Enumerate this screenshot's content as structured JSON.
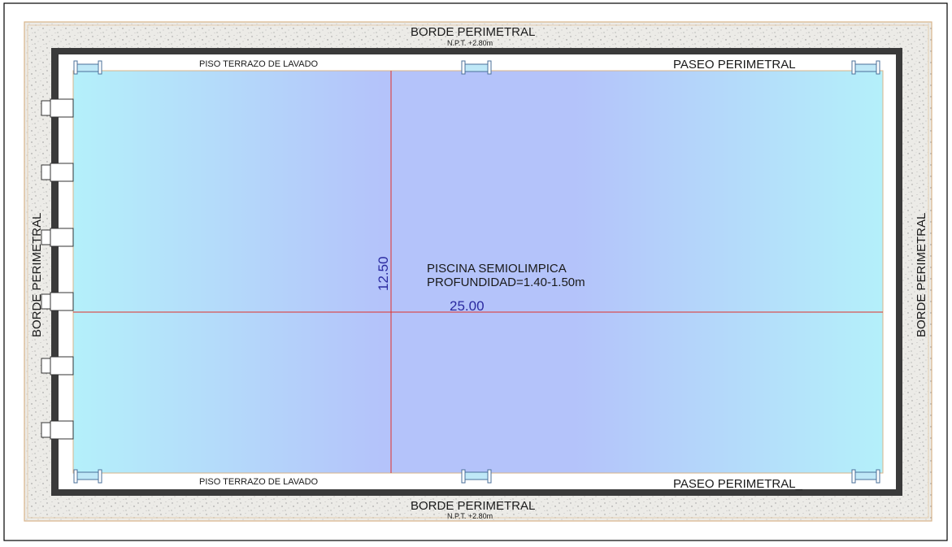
{
  "labels": {
    "borde_top": "BORDE  PERIMETRAL",
    "npt_top": "N.P.T.  +2.80m",
    "borde_bottom": "BORDE  PERIMETRAL",
    "npt_bottom": "N.P.T.  +2.80m",
    "borde_left": "BORDE  PERIMETRAL",
    "borde_right": "BORDE  PERIMETRAL",
    "piso_top": "PISO  TERRAZO  DE  LAVADO",
    "piso_bottom": "PISO  TERRAZO  DE  LAVADO",
    "paseo_top": "PASEO  PERIMETRAL",
    "paseo_bottom": "PASEO  PERIMETRAL_",
    "pool_name": "PISCINA  SEMIOLIMPICA",
    "pool_depth": "PROFUNDIDAD=1.40-1.50m"
  },
  "dimensions": {
    "length": "25.00",
    "width": "12.50"
  },
  "colors": {
    "water_edge": "#b4f0fa",
    "water_center": "#b4c3fa",
    "wall": "#3a3a3a",
    "dimension_line": "#e0302a",
    "dimension_text": "#2a2aa0",
    "border_fill": "#e9e9e6",
    "outer_frame": "#d9b48a"
  }
}
